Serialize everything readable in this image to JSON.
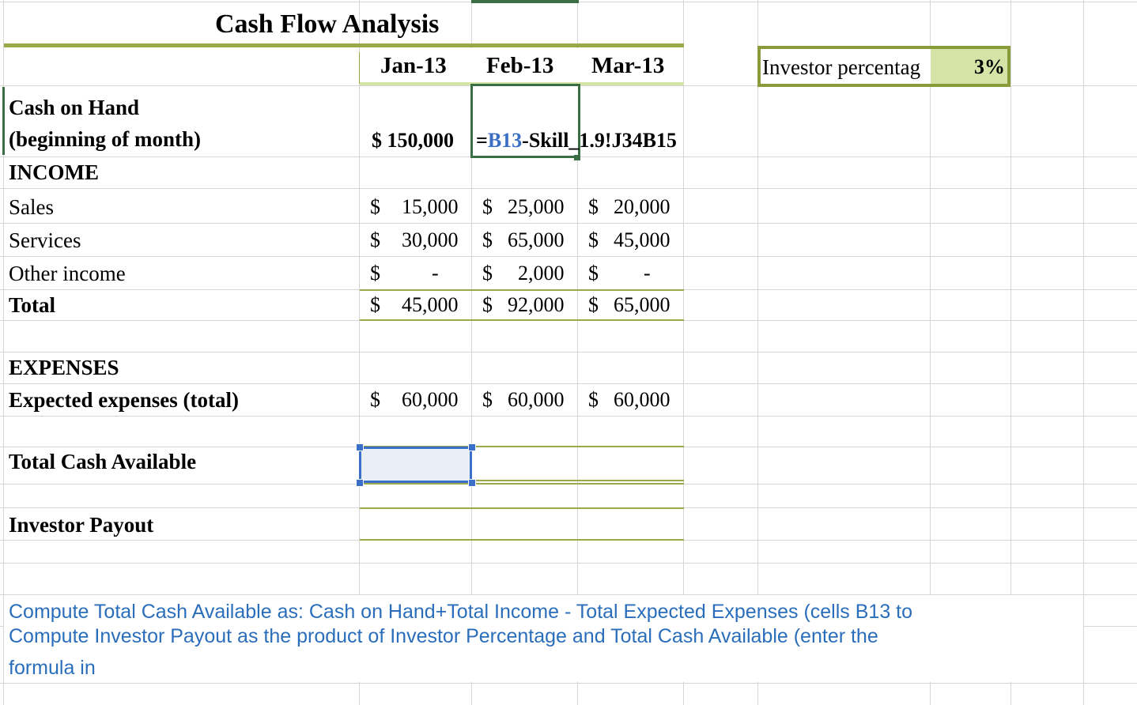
{
  "title": "Cash Flow Analysis",
  "months": [
    "Jan-13",
    "Feb-13",
    "Mar-13"
  ],
  "investor": {
    "label": "Investor percentag",
    "value": "3%"
  },
  "cash_on_hand": {
    "label_line1": "Cash on Hand",
    "label_line2": "(beginning of month)",
    "jan": "$ 150,000",
    "formula_eq": "=",
    "formula_ref": "B13",
    "formula_rest": "-Skill_1.9!J34B15"
  },
  "income": {
    "header": "INCOME",
    "rows": [
      {
        "label": "Sales",
        "values": [
          "15,000",
          "25,000",
          "20,000"
        ]
      },
      {
        "label": "Services",
        "values": [
          "30,000",
          "65,000",
          "45,000"
        ]
      },
      {
        "label": "Other income",
        "values": [
          "-",
          "2,000",
          "-"
        ]
      },
      {
        "label": "Total",
        "values": [
          "45,000",
          "92,000",
          "65,000"
        ]
      }
    ]
  },
  "currency_symbol": "$",
  "expenses": {
    "header": "EXPENSES",
    "label": "Expected expenses (total)",
    "values": [
      "60,000",
      "60,000",
      "60,000"
    ]
  },
  "total_cash_label": "Total Cash Available",
  "investor_payout_label": "Investor Payout",
  "instructions": [
    "Compute Total Cash Available as: Cash on Hand+Total Income - Total Expected Expenses (cells B13 to",
    "Compute Investor Payout as the product of Investor Percentage and Total Cash Available (enter the",
    "formula in"
  ],
  "colors": {
    "olive": "#9aa84a",
    "light_green": "#d5e3a6",
    "selection": "#3a6fca",
    "formula_ref": "#3b6fc4",
    "instruction_text": "#2a6ebb",
    "cell_border_dark": "#3a6e45"
  }
}
